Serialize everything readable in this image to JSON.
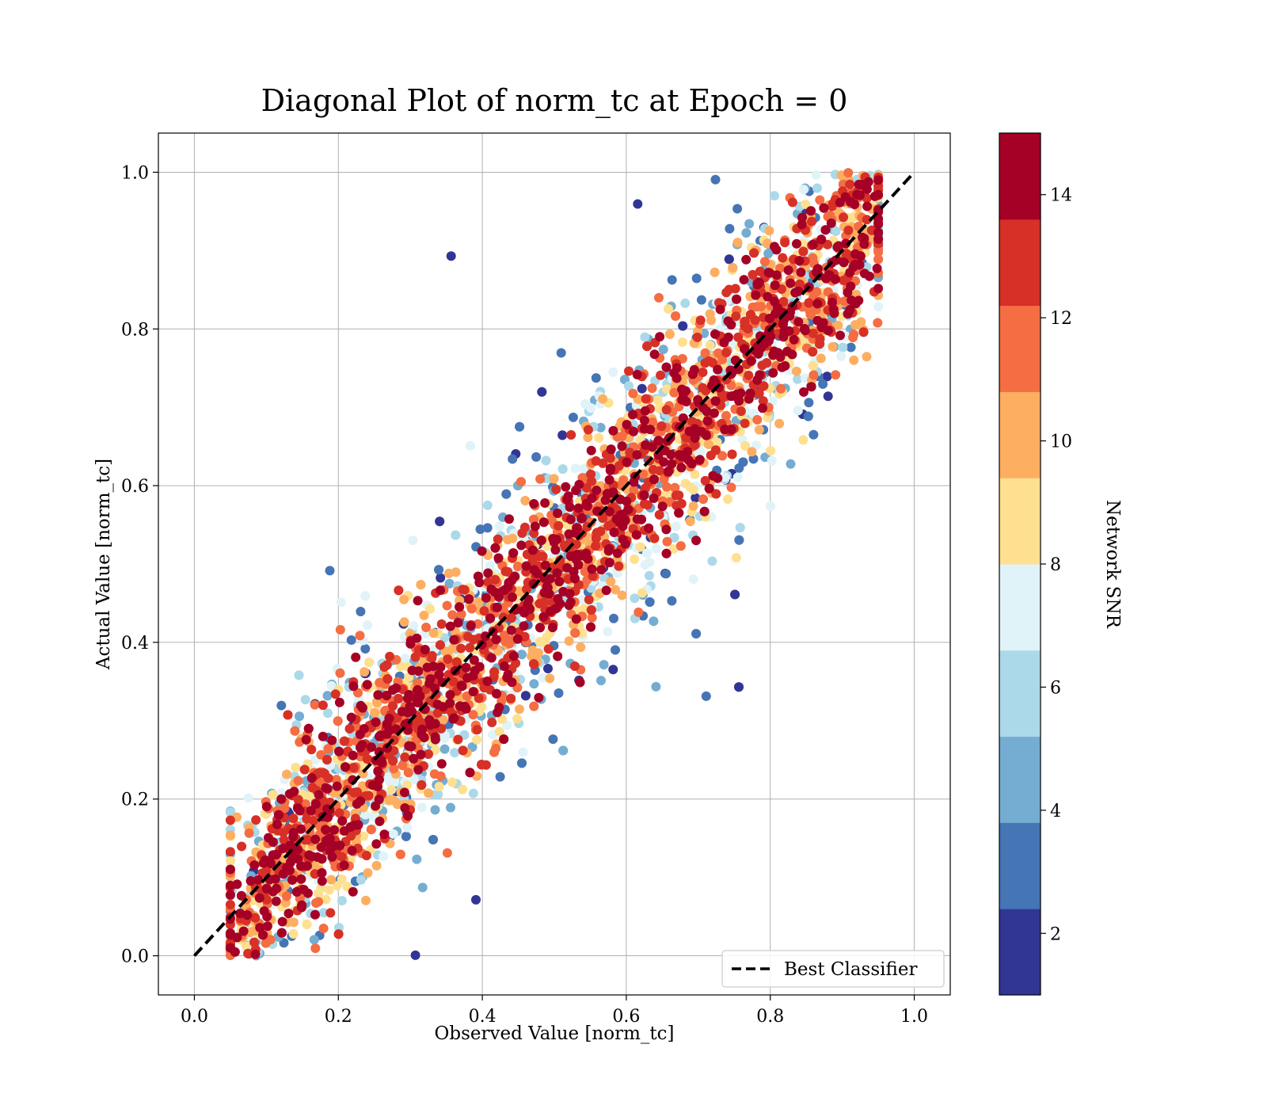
{
  "chart_data": {
    "type": "scatter",
    "title": "Diagonal Plot of norm_tc at Epoch = 0",
    "xlabel": "Observed Value [norm_tc]",
    "ylabel": "Actual Value [norm_tc]",
    "xlim": [
      -0.05,
      1.05
    ],
    "ylim": [
      -0.05,
      1.05
    ],
    "xticks": [
      "0.0",
      "0.2",
      "0.4",
      "0.6",
      "0.8",
      "1.0"
    ],
    "yticks": [
      "0.0",
      "0.2",
      "0.4",
      "0.6",
      "0.8",
      "1.0"
    ],
    "grid": true,
    "legend_position": "bottom-right",
    "reference_line": {
      "label": "Best Classifier",
      "x": [
        0.0,
        1.0
      ],
      "y": [
        0.0,
        1.0
      ],
      "style": "dashed",
      "color": "#000000"
    },
    "colorbar": {
      "label": "Network SNR",
      "range": [
        1,
        15
      ],
      "ticks": [
        "2",
        "4",
        "6",
        "8",
        "10",
        "12",
        "14"
      ],
      "colors": [
        "#313695",
        "#4575b4",
        "#74add1",
        "#abd9e9",
        "#e0f3f8",
        "#fee090",
        "#fdae61",
        "#f46d43",
        "#d73027",
        "#a50026"
      ]
    },
    "points_description_ranges": {
      "x_range": [
        0.05,
        0.95
      ],
      "y_range": [
        0.0,
        1.0
      ]
    }
  }
}
